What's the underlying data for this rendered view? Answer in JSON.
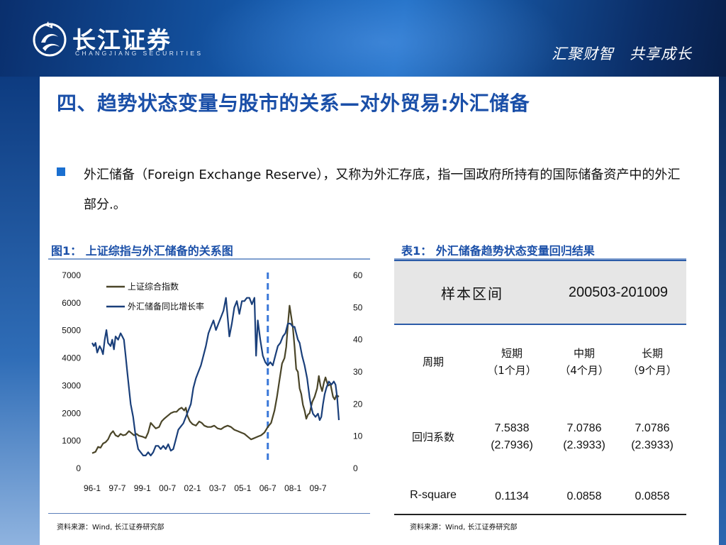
{
  "header": {
    "logo_cn": "长江证券",
    "logo_en": "CHANGJIANG SECURITIES",
    "slogan": "汇聚财智　共享成长",
    "colors": {
      "band_dark": "#0a2f6d",
      "band_light": "#1c6cc3",
      "title": "#1a4fa8",
      "bullet": "#1a6fd0"
    }
  },
  "title": "四、趋势状态变量与股市的关系—对外贸易:外汇储备",
  "paragraph": "外汇储备（Foreign Exchange Reserve），又称为外汇存底，指一国政府所持有的国际储备资产中的外汇部分.。",
  "figure": {
    "caption": "图1： 上证综指与外汇储备的关系图",
    "source": "资料来源：Wind, 长江证券研究部"
  },
  "table": {
    "caption": "表1： 外汇储备趋势状态变量回归结果",
    "source": "资料来源：Wind, 长江证券研究部",
    "header_label": "样本区间",
    "header_value": "200503-201009",
    "period_label": "周期",
    "periods": [
      {
        "name": "短期",
        "detail": "（1个月）"
      },
      {
        "name": "中期",
        "detail": "（4个月）"
      },
      {
        "name": "长期",
        "detail": "（9个月）"
      }
    ],
    "rows": [
      {
        "label": "回归系数",
        "values": [
          [
            "7.5838",
            "(2.7936)"
          ],
          [
            "7.0786",
            "(2.3933)"
          ],
          [
            "7.0786",
            "(2.3933)"
          ]
        ]
      },
      {
        "label": "R-square",
        "values": [
          [
            "0.1134"
          ],
          [
            "0.0858"
          ],
          [
            "0.0858"
          ]
        ]
      }
    ]
  },
  "chart_data": {
    "type": "line",
    "title": "",
    "xlabel": "",
    "ylabel": "",
    "legend_position": "top-left",
    "x_ticks": [
      "96-1",
      "97-7",
      "99-1",
      "00-7",
      "02-1",
      "03-7",
      "05-1",
      "06-7",
      "08-1",
      "09-7"
    ],
    "x_range": [
      1996.0,
      2010.75
    ],
    "y_left": {
      "ticks": [
        "0",
        "1000",
        "2000",
        "3000",
        "4000",
        "5000",
        "6000",
        "7000"
      ],
      "range": [
        0,
        7000
      ]
    },
    "y_right": {
      "ticks": [
        "0",
        "10",
        "20",
        "30",
        "40",
        "50",
        "60"
      ],
      "range": [
        0,
        60
      ]
    },
    "marker_line": {
      "x": 2006.5,
      "style": "dashed",
      "color": "#3a78d8"
    },
    "series": [
      {
        "name": "上证综合指数",
        "axis": "left",
        "color": "#4a4528",
        "points": [
          [
            1996.0,
            550
          ],
          [
            1996.2,
            600
          ],
          [
            1996.35,
            780
          ],
          [
            1996.5,
            750
          ],
          [
            1996.65,
            900
          ],
          [
            1996.8,
            950
          ],
          [
            1996.95,
            1050
          ],
          [
            1997.1,
            1250
          ],
          [
            1997.25,
            1350
          ],
          [
            1997.4,
            1200
          ],
          [
            1997.55,
            1150
          ],
          [
            1997.7,
            1250
          ],
          [
            1997.85,
            1200
          ],
          [
            1998.0,
            1220
          ],
          [
            1998.2,
            1350
          ],
          [
            1998.35,
            1280
          ],
          [
            1998.5,
            1200
          ],
          [
            1998.65,
            1250
          ],
          [
            1998.8,
            1180
          ],
          [
            1999.0,
            1150
          ],
          [
            1999.2,
            1100
          ],
          [
            1999.35,
            1300
          ],
          [
            1999.5,
            1650
          ],
          [
            1999.65,
            1550
          ],
          [
            1999.8,
            1450
          ],
          [
            2000.0,
            1500
          ],
          [
            2000.15,
            1700
          ],
          [
            2000.3,
            1800
          ],
          [
            2000.5,
            1900
          ],
          [
            2000.7,
            2000
          ],
          [
            2000.9,
            2050
          ],
          [
            2001.05,
            2050
          ],
          [
            2001.2,
            2150
          ],
          [
            2001.35,
            2200
          ],
          [
            2001.5,
            2100
          ],
          [
            2001.6,
            2200
          ],
          [
            2001.7,
            1900
          ],
          [
            2001.85,
            1700
          ],
          [
            2002.0,
            1600
          ],
          [
            2002.2,
            1550
          ],
          [
            2002.4,
            1700
          ],
          [
            2002.55,
            1650
          ],
          [
            2002.7,
            1550
          ],
          [
            2002.9,
            1500
          ],
          [
            2003.1,
            1500
          ],
          [
            2003.3,
            1550
          ],
          [
            2003.5,
            1450
          ],
          [
            2003.7,
            1420
          ],
          [
            2003.9,
            1500
          ],
          [
            2004.1,
            1550
          ],
          [
            2004.3,
            1500
          ],
          [
            2004.5,
            1400
          ],
          [
            2004.7,
            1350
          ],
          [
            2004.9,
            1300
          ],
          [
            2005.1,
            1250
          ],
          [
            2005.3,
            1150
          ],
          [
            2005.5,
            1050
          ],
          [
            2005.7,
            1100
          ],
          [
            2005.9,
            1150
          ],
          [
            2006.1,
            1200
          ],
          [
            2006.3,
            1300
          ],
          [
            2006.5,
            1500
          ],
          [
            2006.7,
            1650
          ],
          [
            2006.9,
            2100
          ],
          [
            2007.05,
            2600
          ],
          [
            2007.2,
            3200
          ],
          [
            2007.35,
            3800
          ],
          [
            2007.5,
            4000
          ],
          [
            2007.6,
            4400
          ],
          [
            2007.7,
            5200
          ],
          [
            2007.8,
            5900
          ],
          [
            2007.9,
            5500
          ],
          [
            2008.0,
            5100
          ],
          [
            2008.1,
            4400
          ],
          [
            2008.2,
            3600
          ],
          [
            2008.3,
            3500
          ],
          [
            2008.4,
            2900
          ],
          [
            2008.5,
            2700
          ],
          [
            2008.6,
            2300
          ],
          [
            2008.7,
            2100
          ],
          [
            2008.8,
            1800
          ],
          [
            2008.9,
            1950
          ],
          [
            2009.0,
            2000
          ],
          [
            2009.15,
            2400
          ],
          [
            2009.3,
            2600
          ],
          [
            2009.45,
            2900
          ],
          [
            2009.55,
            3350
          ],
          [
            2009.65,
            3000
          ],
          [
            2009.75,
            2800
          ],
          [
            2009.85,
            3100
          ],
          [
            2009.95,
            3300
          ],
          [
            2010.1,
            3000
          ],
          [
            2010.25,
            3050
          ],
          [
            2010.4,
            2600
          ],
          [
            2010.5,
            2500
          ],
          [
            2010.6,
            2650
          ],
          [
            2010.75,
            2600
          ]
        ]
      },
      {
        "name": "外汇储备同比增长率",
        "axis": "right",
        "color": "#1a3f7a",
        "points": [
          [
            1996.0,
            39
          ],
          [
            1996.1,
            38
          ],
          [
            1996.2,
            39
          ],
          [
            1996.3,
            36
          ],
          [
            1996.45,
            38
          ],
          [
            1996.55,
            37
          ],
          [
            1996.65,
            35.5
          ],
          [
            1996.75,
            40
          ],
          [
            1996.85,
            43
          ],
          [
            1996.95,
            39
          ],
          [
            1997.1,
            38
          ],
          [
            1997.2,
            40
          ],
          [
            1997.3,
            37
          ],
          [
            1997.4,
            41
          ],
          [
            1997.55,
            40
          ],
          [
            1997.7,
            42
          ],
          [
            1997.8,
            41
          ],
          [
            1997.9,
            40
          ],
          [
            1998.0,
            35
          ],
          [
            1998.1,
            30
          ],
          [
            1998.2,
            25
          ],
          [
            1998.3,
            20
          ],
          [
            1998.45,
            16
          ],
          [
            1998.6,
            10
          ],
          [
            1998.75,
            6
          ],
          [
            1998.9,
            5
          ],
          [
            1999.05,
            4
          ],
          [
            1999.2,
            4
          ],
          [
            1999.35,
            5
          ],
          [
            1999.5,
            4
          ],
          [
            1999.65,
            5
          ],
          [
            1999.8,
            7
          ],
          [
            1999.95,
            7
          ],
          [
            2000.1,
            6
          ],
          [
            2000.25,
            7
          ],
          [
            2000.4,
            6
          ],
          [
            2000.55,
            7.5
          ],
          [
            2000.7,
            5.5
          ],
          [
            2000.85,
            6
          ],
          [
            2001.0,
            9
          ],
          [
            2001.15,
            12
          ],
          [
            2001.3,
            13
          ],
          [
            2001.45,
            14
          ],
          [
            2001.6,
            16
          ],
          [
            2001.75,
            18
          ],
          [
            2001.9,
            20
          ],
          [
            2002.05,
            25
          ],
          [
            2002.2,
            28
          ],
          [
            2002.35,
            30
          ],
          [
            2002.5,
            32
          ],
          [
            2002.65,
            35
          ],
          [
            2002.8,
            38
          ],
          [
            2002.95,
            42
          ],
          [
            2003.1,
            44
          ],
          [
            2003.25,
            46
          ],
          [
            2003.4,
            43
          ],
          [
            2003.55,
            45
          ],
          [
            2003.7,
            47
          ],
          [
            2003.85,
            49
          ],
          [
            2004.0,
            53
          ],
          [
            2004.1,
            47
          ],
          [
            2004.2,
            41
          ],
          [
            2004.35,
            45
          ],
          [
            2004.5,
            50
          ],
          [
            2004.65,
            52
          ],
          [
            2004.8,
            48
          ],
          [
            2004.95,
            52
          ],
          [
            2005.1,
            52
          ],
          [
            2005.25,
            53
          ],
          [
            2005.4,
            53
          ],
          [
            2005.55,
            51
          ],
          [
            2005.7,
            53
          ],
          [
            2005.8,
            35
          ],
          [
            2005.9,
            46
          ],
          [
            2006.05,
            40
          ],
          [
            2006.2,
            35
          ],
          [
            2006.35,
            33
          ],
          [
            2006.5,
            32
          ],
          [
            2006.65,
            33
          ],
          [
            2006.8,
            32
          ],
          [
            2006.95,
            35
          ],
          [
            2007.1,
            38
          ],
          [
            2007.25,
            39
          ],
          [
            2007.4,
            41
          ],
          [
            2007.55,
            42
          ],
          [
            2007.7,
            45
          ],
          [
            2007.85,
            45
          ],
          [
            2008.0,
            44
          ],
          [
            2008.1,
            44
          ],
          [
            2008.2,
            42
          ],
          [
            2008.3,
            40
          ],
          [
            2008.4,
            39
          ],
          [
            2008.55,
            35
          ],
          [
            2008.7,
            32
          ],
          [
            2008.85,
            28
          ],
          [
            2009.0,
            22
          ],
          [
            2009.1,
            19
          ],
          [
            2009.2,
            17
          ],
          [
            2009.35,
            16
          ],
          [
            2009.5,
            17
          ],
          [
            2009.6,
            15
          ],
          [
            2009.7,
            16
          ],
          [
            2009.8,
            20
          ],
          [
            2009.9,
            23
          ],
          [
            2010.0,
            25
          ],
          [
            2010.15,
            27
          ],
          [
            2010.3,
            26
          ],
          [
            2010.45,
            27
          ],
          [
            2010.55,
            26
          ],
          [
            2010.65,
            22
          ],
          [
            2010.75,
            15
          ]
        ]
      }
    ]
  }
}
